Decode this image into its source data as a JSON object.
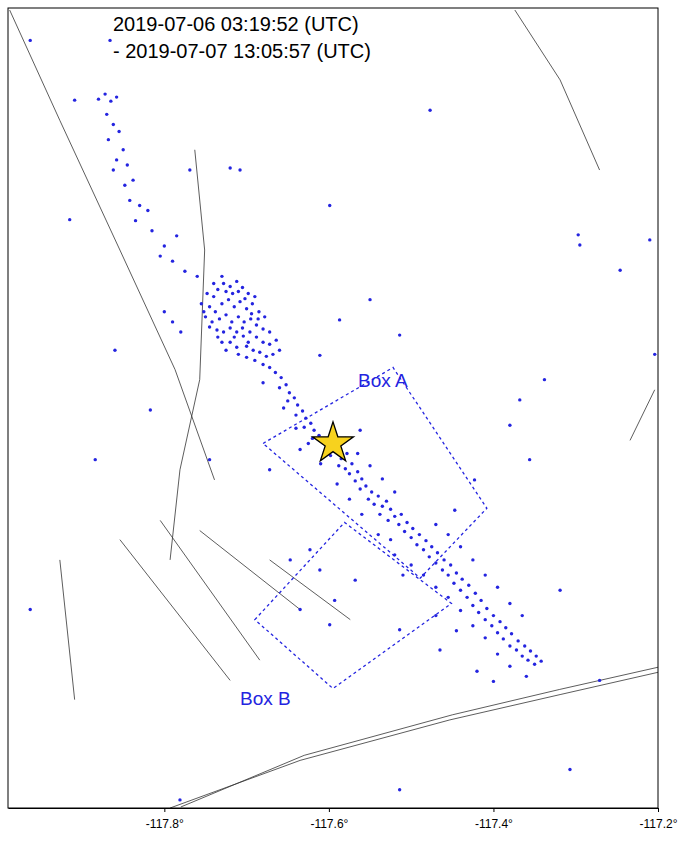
{
  "chart_data": {
    "type": "scatter",
    "title": [
      "2019-07-06 03:19:52 (UTC)",
      "- 2019-07-07 13:05:57 (UTC)"
    ],
    "color": "#2424e0",
    "marker": "circle",
    "tick_labels": "x",
    "xlim": [
      -117.99,
      -117.2
    ],
    "ylim": [
      35.41,
      36.2
    ],
    "xticks": [
      {
        "value": -117.8,
        "label": "-117.8°"
      },
      {
        "value": -117.6,
        "label": "-117.6°"
      },
      {
        "value": -117.4,
        "label": "-117.4°"
      },
      {
        "value": -117.2,
        "label": "-117.2°"
      }
    ],
    "x": [
      -117.74,
      -117.735,
      -117.728,
      -117.72,
      -117.712,
      -117.705,
      -117.698,
      -117.69,
      -117.745,
      -117.738,
      -117.73,
      -117.722,
      -117.715,
      -117.708,
      -117.7,
      -117.693,
      -117.685,
      -117.678,
      -117.75,
      -117.742,
      -117.733,
      -117.725,
      -117.718,
      -117.71,
      -117.703,
      -117.695,
      -117.688,
      -117.68,
      -117.672,
      -117.755,
      -117.748,
      -117.725,
      -117.717,
      -117.702,
      -117.736,
      -117.728,
      -117.72,
      -117.712,
      -117.704,
      -117.696,
      -117.688,
      -117.68,
      -117.672,
      -117.664,
      -117.72,
      -117.712,
      -117.7,
      -117.692,
      -117.684,
      -117.676,
      -117.668,
      -117.66,
      -117.73,
      -117.745,
      -117.752,
      -117.74,
      -117.73,
      -117.71,
      -117.694,
      -117.686,
      -117.705,
      -117.715,
      -117.698,
      -117.69,
      -117.68,
      -117.672,
      -117.7,
      -117.71,
      -117.725,
      -117.735,
      -117.665,
      -117.658,
      -117.652,
      -117.66,
      -117.648,
      -117.642,
      -117.65,
      -117.638,
      -117.632,
      -117.64,
      -117.628,
      -117.622,
      -117.63,
      -117.618,
      -117.612,
      -117.62,
      -117.605,
      -117.6,
      -117.592,
      -117.598,
      -117.585,
      -117.578,
      -117.588,
      -117.58,
      -117.572,
      -117.575,
      -117.565,
      -117.568,
      -117.56,
      -117.555,
      -117.562,
      -117.548,
      -117.552,
      -117.54,
      -117.545,
      -117.535,
      -117.53,
      -117.525,
      -117.538,
      -117.52,
      -117.528,
      -117.512,
      -117.515,
      -117.505,
      -117.508,
      -117.498,
      -117.5,
      -117.49,
      -117.493,
      -117.482,
      -117.485,
      -117.475,
      -117.478,
      -117.468,
      -117.47,
      -117.46,
      -117.462,
      -117.452,
      -117.455,
      -117.445,
      -117.448,
      -117.438,
      -117.44,
      -117.43,
      -117.432,
      -117.422,
      -117.425,
      -117.415,
      -117.418,
      -117.408,
      -117.41,
      -117.4,
      -117.402,
      -117.392,
      -117.395,
      -117.385,
      -117.388,
      -117.378,
      -117.38,
      -117.37,
      -117.372,
      -117.362,
      -117.365,
      -117.355,
      -117.358,
      -117.348,
      -117.35,
      -117.342,
      -117.47,
      -117.455,
      -117.44,
      -117.425,
      -117.41,
      -117.395,
      -117.38,
      -117.365,
      -117.5,
      -117.485,
      -117.47,
      -117.455,
      -117.44,
      -117.425,
      -117.41,
      -117.395,
      -117.38,
      -117.36,
      -117.42,
      -117.4,
      -117.445,
      -117.47,
      -117.52,
      -117.51,
      -117.54,
      -117.525,
      -117.56,
      -117.575,
      -117.59,
      -117.61,
      -117.625,
      -117.64,
      -117.655,
      -117.68,
      -117.58,
      -117.565,
      -117.55,
      -117.535,
      -117.52,
      -117.88,
      -117.872,
      -117.865,
      -117.858,
      -117.87,
      -117.862,
      -117.855,
      -117.868,
      -117.85,
      -117.858,
      -117.845,
      -117.862,
      -117.848,
      -117.838,
      -117.842,
      -117.83,
      -117.835,
      -117.82,
      -117.815,
      -117.8,
      -117.79,
      -117.775,
      -117.76,
      -117.785,
      -117.805,
      -117.8,
      -117.79,
      -117.78,
      -117.963,
      -117.866,
      -117.769,
      -117.72,
      -117.708,
      -117.909,
      -117.915,
      -117.884,
      -117.86,
      -117.599,
      -117.477,
      -117.338,
      -117.368,
      -117.246,
      -117.295,
      -117.297,
      -117.204,
      -117.356,
      -117.38,
      -117.447,
      -117.423,
      -117.55,
      -117.587,
      -117.514,
      -117.611,
      -117.562,
      -117.635,
      -117.672,
      -117.745,
      -117.817,
      -117.635,
      -117.599,
      -117.568,
      -117.611,
      -117.514,
      -117.307,
      -117.514,
      -117.465,
      -117.781,
      -117.319,
      -117.271,
      -117.963,
      -117.21,
      -117.647,
      -117.623,
      -117.593
    ],
    "values": [
      35.915,
      35.922,
      35.928,
      35.925,
      35.93,
      35.924,
      35.918,
      35.915,
      35.905,
      35.9,
      35.908,
      35.912,
      35.905,
      35.91,
      35.903,
      35.908,
      35.9,
      35.895,
      35.895,
      35.89,
      35.893,
      35.897,
      35.89,
      35.895,
      35.89,
      35.893,
      35.887,
      35.883,
      35.88,
      35.908,
      35.918,
      35.92,
      35.918,
      35.913,
      35.882,
      35.88,
      35.884,
      35.88,
      35.876,
      35.88,
      35.875,
      35.87,
      35.868,
      35.872,
      35.87,
      35.865,
      35.866,
      35.862,
      35.86,
      35.856,
      35.858,
      35.862,
      35.87,
      35.885,
      35.9,
      35.928,
      35.935,
      35.92,
      35.898,
      35.893,
      35.884,
      35.875,
      35.87,
      35.852,
      35.848,
      35.845,
      35.855,
      35.858,
      35.862,
      35.875,
      35.84,
      35.835,
      35.828,
      35.825,
      35.82,
      35.815,
      35.812,
      35.808,
      35.802,
      35.798,
      35.795,
      35.79,
      35.786,
      35.783,
      35.778,
      35.775,
      35.772,
      35.765,
      35.762,
      35.758,
      35.755,
      35.76,
      35.748,
      35.745,
      35.75,
      35.74,
      35.742,
      35.733,
      35.735,
      35.728,
      35.725,
      35.722,
      35.715,
      35.718,
      35.71,
      35.708,
      35.713,
      35.705,
      35.7,
      35.698,
      35.694,
      35.7,
      35.69,
      35.692,
      35.683,
      35.686,
      35.677,
      35.68,
      35.67,
      35.674,
      35.665,
      35.668,
      35.658,
      35.662,
      35.652,
      35.655,
      35.645,
      35.65,
      35.64,
      35.642,
      35.632,
      35.636,
      35.625,
      35.63,
      35.618,
      35.622,
      35.61,
      35.615,
      35.603,
      35.607,
      35.596,
      35.6,
      35.59,
      35.594,
      35.583,
      35.588,
      35.577,
      35.582,
      35.57,
      35.575,
      35.566,
      35.57,
      35.56,
      35.565,
      35.556,
      35.56,
      35.552,
      35.555,
      35.69,
      35.68,
      35.668,
      35.655,
      35.64,
      35.628,
      35.612,
      35.6,
      35.65,
      35.64,
      35.628,
      35.618,
      35.605,
      35.59,
      35.578,
      35.562,
      35.55,
      35.54,
      35.545,
      35.535,
      35.585,
      35.6,
      35.66,
      35.64,
      35.68,
      35.675,
      35.7,
      35.715,
      35.73,
      35.75,
      35.77,
      35.785,
      35.805,
      35.83,
      35.775,
      35.76,
      35.748,
      35.735,
      35.722,
      36.11,
      36.115,
      36.108,
      36.112,
      36.095,
      36.085,
      36.078,
      36.07,
      36.06,
      36.05,
      36.045,
      36.04,
      36.025,
      36.03,
      36.01,
      36.005,
      35.99,
      36.0,
      35.98,
      35.965,
      35.95,
      35.94,
      35.935,
      35.975,
      35.955,
      35.9,
      35.89,
      35.88,
      36.168,
      36.168,
      36.04,
      36.042,
      36.04,
      36.109,
      35.991,
      35.754,
      35.862,
      36.005,
      36.099,
      35.833,
      35.813,
      35.941,
      35.966,
      35.976,
      35.858,
      35.754,
      35.788,
      35.704,
      35.734,
      35.912,
      35.892,
      35.877,
      35.857,
      35.783,
      35.764,
      35.744,
      35.754,
      35.803,
      35.606,
      35.591,
      35.635,
      35.645,
      35.586,
      35.448,
      35.428,
      35.566,
      35.418,
      35.625,
      35.536,
      35.606,
      35.971,
      35.655,
      35.665,
      35.615
    ],
    "mainshock": {
      "x": -117.595,
      "y": 35.77
    },
    "boxes": [
      {
        "label": "Box A",
        "x": [
          -117.68,
          -117.522,
          -117.408,
          -117.489
        ],
        "y": [
          35.77,
          35.845,
          35.706,
          35.637
        ]
      },
      {
        "label": "Box B",
        "x": [
          -117.69,
          -117.581,
          -117.451,
          -117.595
        ],
        "y": [
          35.596,
          35.692,
          35.612,
          35.528
        ]
      }
    ],
    "faults": [
      {
        "x": [
          -117.988,
          -117.927,
          -117.854,
          -117.787,
          -117.739
        ],
        "y": [
          36.198,
          36.089,
          35.961,
          35.843,
          35.734
        ]
      },
      {
        "x": [
          -117.763,
          -117.751,
          -117.757,
          -117.781,
          -117.793
        ],
        "y": [
          36.06,
          35.961,
          35.833,
          35.744,
          35.655
        ]
      },
      {
        "x": [
          -117.374,
          -117.319,
          -117.271
        ],
        "y": [
          36.198,
          36.129,
          36.04
        ]
      },
      {
        "x": [
          -117.854,
          -117.72
        ],
        "y": [
          35.675,
          35.536
        ]
      },
      {
        "x": [
          -117.805,
          -117.684
        ],
        "y": [
          35.694,
          35.556
        ]
      },
      {
        "x": [
          -117.757,
          -117.635
        ],
        "y": [
          35.684,
          35.606
        ]
      },
      {
        "x": [
          -117.672,
          -117.574
        ],
        "y": [
          35.655,
          35.596
        ]
      },
      {
        "x": [
          -117.234,
          -117.204
        ],
        "y": [
          35.773,
          35.823
        ]
      },
      {
        "x": [
          -117.927,
          -117.909
        ],
        "y": [
          35.655,
          35.517
        ]
      },
      {
        "x": [
          -117.793,
          -117.635,
          -117.453,
          -117.319,
          -117.2
        ],
        "y": [
          35.41,
          35.457,
          35.497,
          35.522,
          35.544
        ]
      },
      {
        "x": [
          -117.78,
          -117.63,
          -117.45,
          -117.32,
          -117.2
        ],
        "y": [
          35.411,
          35.462,
          35.502,
          35.527,
          35.549
        ]
      }
    ]
  }
}
